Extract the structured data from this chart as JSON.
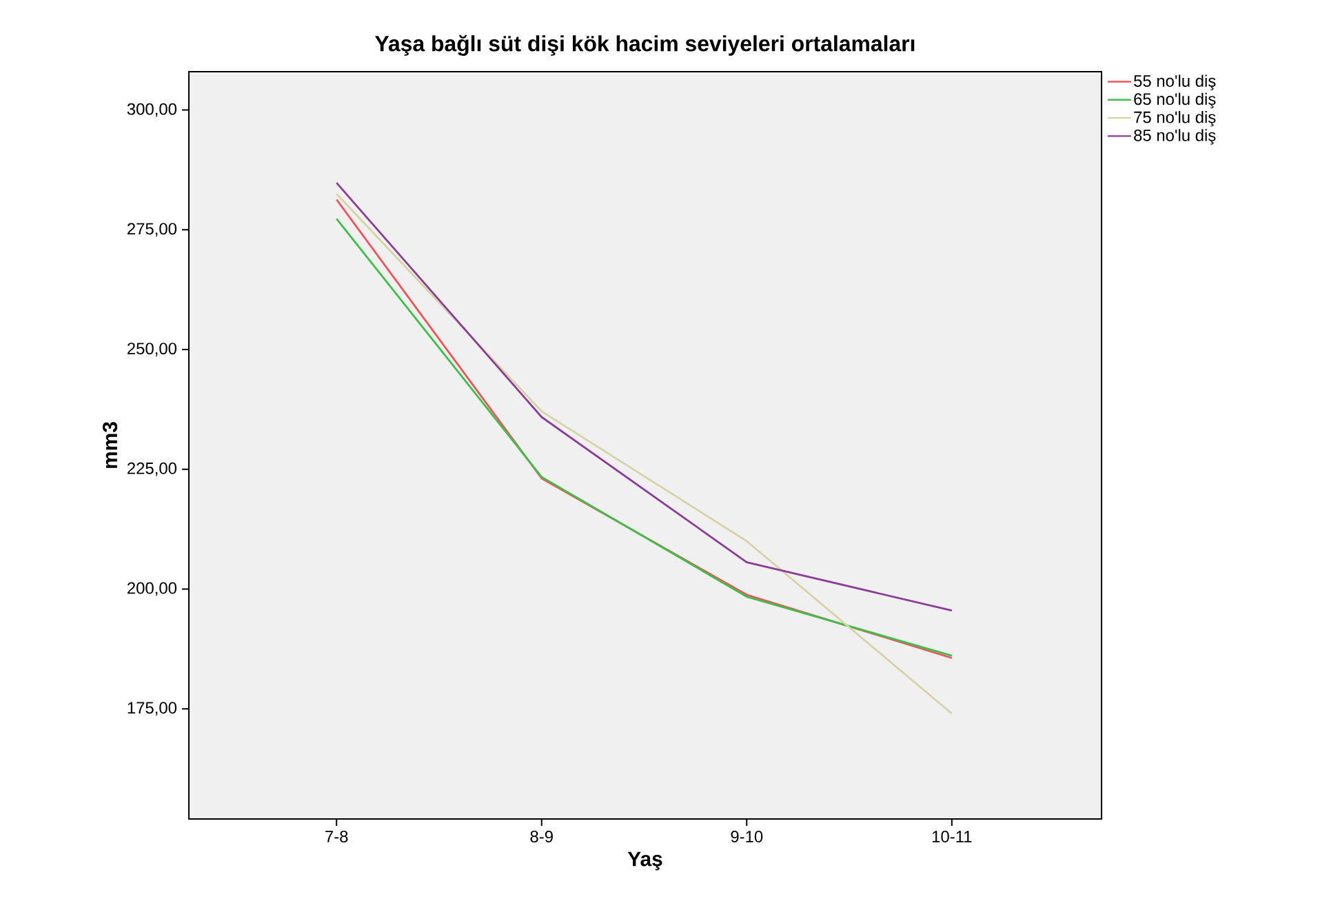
{
  "chart_data": {
    "type": "line",
    "title": "Yaşa bağlı süt dişi kök hacim seviyeleri ortalamaları",
    "xlabel": "Yaş",
    "ylabel": "mm3",
    "categories": [
      "7-8",
      "8-9",
      "9-10",
      "10-11"
    ],
    "series": [
      {
        "name": "55 no'lu diş",
        "color": "#f0545a",
        "values": [
          281.3,
          223.1,
          198.8,
          185.6
        ]
      },
      {
        "name": "65 no'lu diş",
        "color": "#3dbf4a",
        "values": [
          277.3,
          223.4,
          198.4,
          186.1
        ]
      },
      {
        "name": "75 no'lu diş",
        "color": "#d8d3a6",
        "values": [
          282.5,
          237.1,
          210.0,
          174.0
        ]
      },
      {
        "name": "85 no'lu diş",
        "color": "#8b3e96",
        "values": [
          284.8,
          235.9,
          205.6,
          195.5
        ]
      }
    ],
    "ylim": [
      152,
      308
    ],
    "yticks": [
      {
        "value": 175,
        "label": "175,00"
      },
      {
        "value": 200,
        "label": "200,00"
      },
      {
        "value": 225,
        "label": "225,00"
      },
      {
        "value": 250,
        "label": "250,00"
      },
      {
        "value": 275,
        "label": "275,00"
      },
      {
        "value": 300,
        "label": "300,00"
      }
    ],
    "legend": "top right",
    "grid": false,
    "marker": "none",
    "line_style": "solid"
  }
}
